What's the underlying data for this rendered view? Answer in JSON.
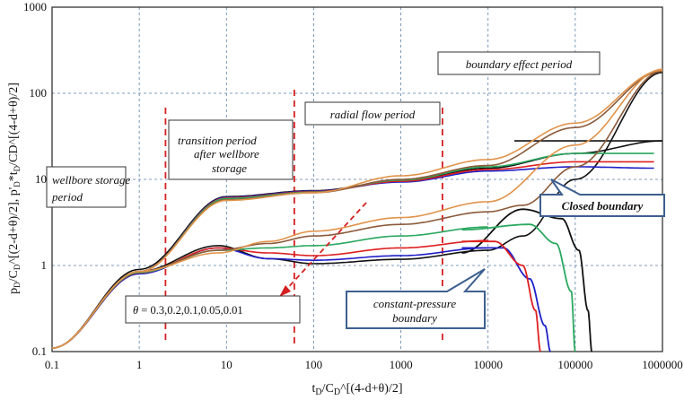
{
  "chart_data": {
    "type": "line",
    "x_scale": "log",
    "y_scale": "log",
    "xlim": [
      0.1,
      1000000
    ],
    "ylim": [
      0.1,
      1000
    ],
    "grid": "dashed",
    "x_ticks": [
      "0.1",
      "1",
      "10",
      "100",
      "1000",
      "10000",
      "100000",
      "1000000"
    ],
    "y_ticks": [
      "0.1",
      "1",
      "10",
      "100",
      "1000"
    ],
    "xlabel": {
      "base": "t",
      "s1": "D",
      "mid": "/C",
      "s2": "D",
      "rest": "^[(4-d+θ)/2]"
    },
    "ylabel": {
      "p1": "p",
      "s1": "D",
      "p2": "/C",
      "s2": "D",
      "p3": "^[(2-d+θ)/2], p'",
      "s3": "D",
      "p4": "*t",
      "s4": "D",
      "p5": "/CD^[(4-d+θ)/2]"
    },
    "annotations": {
      "wellbore_line1": "wellbore storage",
      "wellbore_line2": "period",
      "transition_line1": "transition period",
      "transition_line2": "after wellbore",
      "transition_line3": "storage",
      "radial": "radial flow period",
      "boundary": "boundary effect period",
      "closed": "Closed boundary",
      "constant_line1": "constant-pressure",
      "constant_line2": "boundary",
      "theta_symbol": "θ",
      "theta_values": "= 0.3,0.2,0.1,0.05,0.01"
    },
    "colors": {
      "black": "#111111",
      "blue": "#1f1fc8",
      "red": "#dd2020",
      "green": "#2aa860",
      "brown": "#8a5a3a",
      "orange": "#e0934a",
      "guide_red": "#d42020",
      "grid": "#5a7ea8",
      "callout_border": "#3d5f8f"
    },
    "phase_markers_x": [
      2,
      60,
      3000
    ],
    "series": [
      {
        "color_key": "black",
        "pressure": [
          [
            0.1,
            0.11
          ],
          [
            1,
            0.9
          ],
          [
            10,
            6.3
          ],
          [
            100,
            7.4
          ],
          [
            1000,
            9.5
          ],
          [
            10000,
            13.5
          ],
          [
            100000,
            20
          ],
          [
            1000000,
            28
          ]
        ],
        "derivative": [
          [
            0.1,
            0.11
          ],
          [
            1,
            0.85
          ],
          [
            8,
            1.7
          ],
          [
            30,
            1.2
          ],
          [
            100,
            1.05
          ],
          [
            1000,
            1.18
          ],
          [
            10000,
            1.5
          ],
          [
            25000,
            2.2
          ],
          [
            100000,
            10
          ],
          [
            1000000,
            175
          ]
        ],
        "closed_end": [
          [
            20000,
            28
          ],
          [
            1000000,
            28
          ]
        ],
        "cp_derivative": [
          [
            5000,
            1.4
          ],
          [
            25000,
            4.5
          ],
          [
            70000,
            3.5
          ],
          [
            110000,
            1.5
          ],
          [
            140000,
            0.3
          ],
          [
            155000,
            0.1
          ]
        ],
        "cp_pressure_end": 155000
      },
      {
        "color_key": "blue",
        "pressure": [
          [
            0.1,
            0.11
          ],
          [
            1,
            0.85
          ],
          [
            10,
            6.2
          ],
          [
            100,
            7.3
          ],
          [
            1000,
            9.3
          ],
          [
            10000,
            12.5
          ],
          [
            100000,
            14
          ],
          [
            800000,
            13.5
          ]
        ],
        "derivative": [
          [
            0.1,
            0.11
          ],
          [
            1,
            0.8
          ],
          [
            8,
            1.6
          ],
          [
            30,
            1.2
          ],
          [
            100,
            1.15
          ],
          [
            1000,
            1.3
          ],
          [
            10000,
            1.6
          ]
        ],
        "cp_derivative": [
          [
            5000,
            1.6
          ],
          [
            15000,
            1.6
          ],
          [
            30000,
            0.7
          ],
          [
            45000,
            0.2
          ],
          [
            52000,
            0.1
          ]
        ]
      },
      {
        "color_key": "red",
        "pressure": [
          [
            0.1,
            0.11
          ],
          [
            1,
            0.85
          ],
          [
            10,
            6.1
          ],
          [
            100,
            7.2
          ],
          [
            1000,
            9.5
          ],
          [
            10000,
            13
          ],
          [
            100000,
            16
          ],
          [
            800000,
            16
          ]
        ],
        "derivative": [
          [
            0.1,
            0.11
          ],
          [
            1,
            0.82
          ],
          [
            8,
            1.6
          ],
          [
            30,
            1.4
          ],
          [
            100,
            1.3
          ],
          [
            1000,
            1.6
          ],
          [
            10000,
            1.95
          ]
        ],
        "cp_derivative": [
          [
            5000,
            1.9
          ],
          [
            12000,
            1.9
          ],
          [
            25000,
            1.0
          ],
          [
            35000,
            0.3
          ],
          [
            40000,
            0.1
          ]
        ]
      },
      {
        "color_key": "green",
        "pressure": [
          [
            0.1,
            0.11
          ],
          [
            1,
            0.85
          ],
          [
            10,
            6.0
          ],
          [
            100,
            7.1
          ],
          [
            1000,
            9.8
          ],
          [
            10000,
            14
          ],
          [
            100000,
            20
          ],
          [
            800000,
            20
          ]
        ],
        "derivative": [
          [
            0.1,
            0.11
          ],
          [
            1,
            0.83
          ],
          [
            8,
            1.5
          ],
          [
            30,
            1.6
          ],
          [
            100,
            1.7
          ],
          [
            1000,
            2.2
          ],
          [
            10000,
            2.8
          ]
        ],
        "cp_derivative": [
          [
            5000,
            2.6
          ],
          [
            30000,
            3.0
          ],
          [
            60000,
            1.8
          ],
          [
            90000,
            0.5
          ],
          [
            100000,
            0.1
          ]
        ]
      },
      {
        "color_key": "brown",
        "pressure": [
          [
            0.1,
            0.11
          ],
          [
            1,
            0.85
          ],
          [
            10,
            5.8
          ],
          [
            100,
            7.0
          ],
          [
            1000,
            10
          ],
          [
            10000,
            14.5
          ],
          [
            100000,
            40
          ],
          [
            1000000,
            180
          ]
        ],
        "derivative": [
          [
            0.1,
            0.11
          ],
          [
            1,
            0.85
          ],
          [
            8,
            1.5
          ],
          [
            30,
            1.8
          ],
          [
            100,
            2.2
          ],
          [
            1000,
            3.0
          ],
          [
            10000,
            4.2
          ],
          [
            25000,
            5.0
          ],
          [
            100000,
            14
          ],
          [
            1000000,
            180
          ]
        ]
      },
      {
        "color_key": "orange",
        "pressure": [
          [
            0.1,
            0.11
          ],
          [
            1,
            0.85
          ],
          [
            10,
            5.7
          ],
          [
            100,
            7.0
          ],
          [
            1000,
            11
          ],
          [
            10000,
            17
          ],
          [
            100000,
            45
          ],
          [
            1000000,
            185
          ]
        ],
        "derivative": [
          [
            0.1,
            0.11
          ],
          [
            1,
            0.85
          ],
          [
            8,
            1.4
          ],
          [
            30,
            1.9
          ],
          [
            100,
            2.5
          ],
          [
            1000,
            3.6
          ],
          [
            10000,
            5.5
          ],
          [
            100000,
            25
          ],
          [
            1000000,
            190
          ]
        ]
      }
    ]
  }
}
